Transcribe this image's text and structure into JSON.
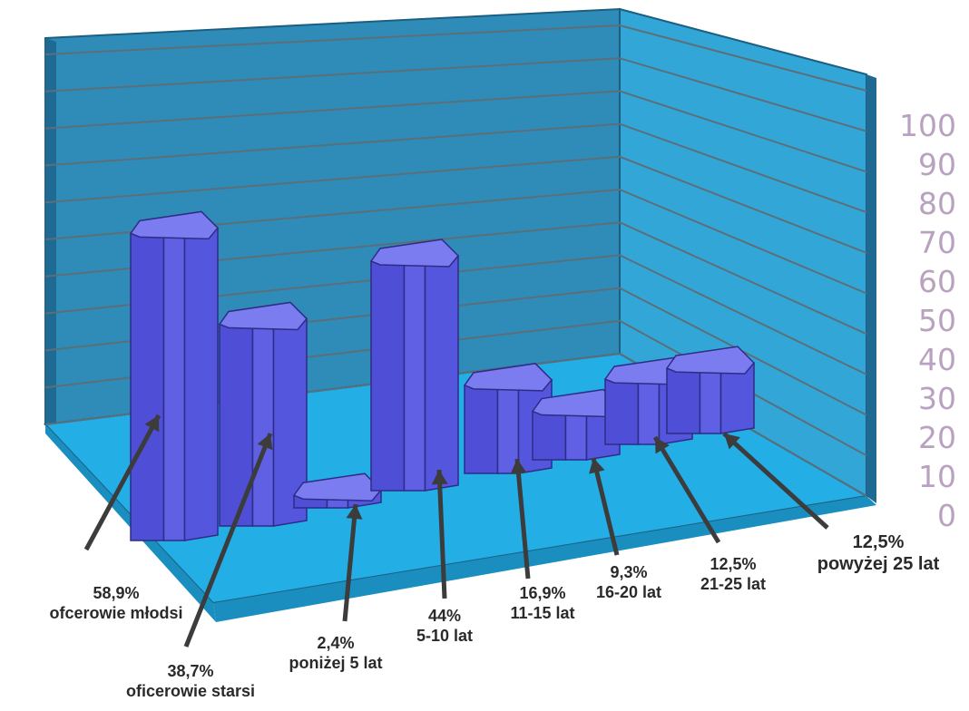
{
  "chart_data": {
    "type": "bar",
    "title": "",
    "xlabel": "",
    "ylabel": "",
    "ylim": [
      0,
      100
    ],
    "yticks": [
      "0",
      "10",
      "20",
      "30",
      "40",
      "50",
      "60",
      "70",
      "80",
      "90",
      "100"
    ],
    "categories": [
      "ofcerowie młodsi",
      "oficerowie starsi",
      "poniżej 5 lat",
      "5-10 lat",
      "11-15 lat",
      "16-20 lat",
      "21-25 lat",
      "powyżej 25 lat"
    ],
    "values": [
      58.9,
      38.7,
      2.4,
      44,
      16.9,
      9.3,
      12.5,
      12.5
    ],
    "value_labels": [
      "58,9%",
      "38,7%",
      "2,4%",
      "44%",
      "16,9%",
      "9,3%",
      "12,5%",
      "12,5%"
    ],
    "colors": {
      "back_wall": "#2f8bb8",
      "side_wall": "#33a6d8",
      "floor": "#23aee6",
      "bar_front": "#5b5ce6",
      "bar_top": "#7a7cf0",
      "bar_edge": "#2e2c84",
      "arrow": "#3c3c3c",
      "tick_text": "#b9a2c0"
    }
  }
}
